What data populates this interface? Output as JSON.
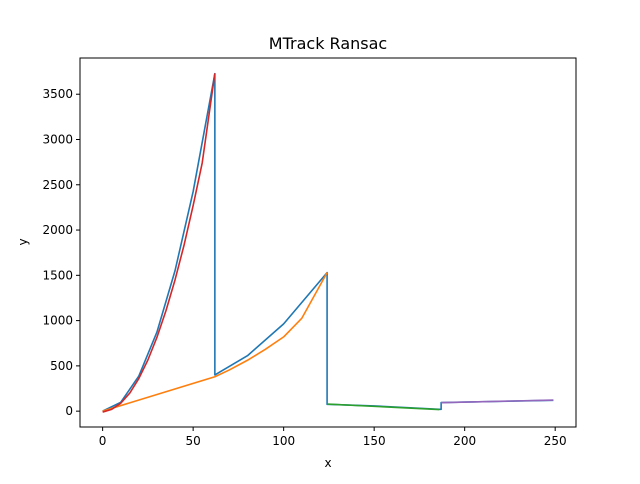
{
  "chart_data": {
    "type": "line",
    "title": "MTrack Ransac",
    "xlabel": "x",
    "ylabel": "y",
    "xlim": [
      -12.5,
      261.5
    ],
    "ylim": [
      -175,
      3900
    ],
    "xticks": [
      0,
      50,
      100,
      150,
      200,
      250
    ],
    "yticks": [
      0,
      500,
      1000,
      1500,
      2000,
      2500,
      3000,
      3500
    ],
    "grid": false,
    "series": [
      {
        "color": "#1f77b4",
        "points": [
          [
            0,
            0
          ],
          [
            10,
            97
          ],
          [
            20,
            388
          ],
          [
            30,
            873
          ],
          [
            40,
            1552
          ],
          [
            50,
            2425
          ],
          [
            62,
            3727
          ],
          [
            62,
            400
          ],
          [
            80,
            612
          ],
          [
            100,
            964
          ],
          [
            124,
            1530
          ],
          [
            124,
            75
          ],
          [
            150,
            58
          ],
          [
            186,
            20
          ],
          [
            187,
            20
          ],
          [
            187,
            95
          ],
          [
            200,
            100
          ],
          [
            220,
            108
          ],
          [
            249,
            120
          ]
        ]
      },
      {
        "color": "#ff7f0e",
        "points": [
          [
            0,
            0
          ],
          [
            62,
            380
          ],
          [
            70,
            455
          ],
          [
            80,
            562
          ],
          [
            90,
            684
          ],
          [
            100,
            820
          ],
          [
            110,
            1025
          ],
          [
            124,
            1530
          ]
        ]
      },
      {
        "color": "#2ca02c",
        "points": [
          [
            124,
            78
          ],
          [
            186,
            18
          ]
        ]
      },
      {
        "color": "#d62728",
        "points": [
          [
            0,
            -10
          ],
          [
            5,
            20
          ],
          [
            10,
            87
          ],
          [
            15,
            200
          ],
          [
            20,
            360
          ],
          [
            25,
            565
          ],
          [
            30,
            815
          ],
          [
            35,
            1110
          ],
          [
            40,
            1450
          ],
          [
            45,
            1835
          ],
          [
            50,
            2270
          ],
          [
            55,
            2740
          ],
          [
            62,
            3730
          ]
        ]
      },
      {
        "color": "#9467bd",
        "points": [
          [
            187,
            93
          ],
          [
            249,
            123
          ]
        ]
      }
    ]
  }
}
